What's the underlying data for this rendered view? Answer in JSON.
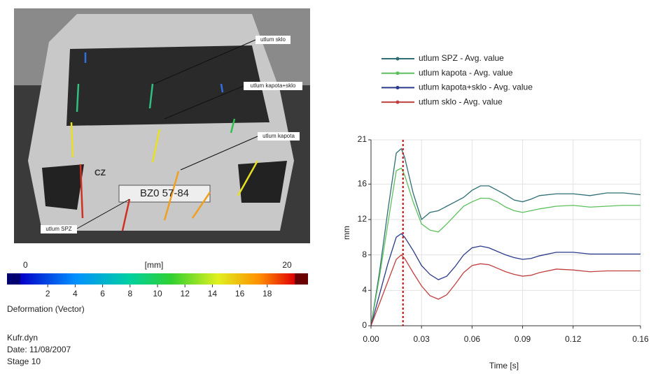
{
  "photo_labels": [
    "utlum sklo",
    "utlum kapota+sklo",
    "utlum kapota",
    "utlum SPZ"
  ],
  "photo_texts": [
    "CZ",
    "BZ0 57-84"
  ],
  "colorbar": {
    "min": 0,
    "max": 20,
    "unit": "[mm]",
    "ticks": [
      2,
      4,
      6,
      8,
      10,
      12,
      14,
      16,
      18
    ],
    "title": "Deformation (Vector)"
  },
  "info": [
    "Kufr.dyn",
    "Date: 11/08/2007",
    "Stage 10"
  ],
  "chart_data": {
    "type": "line",
    "x_label": "Time [s]",
    "y_label": "mm",
    "x": [
      0,
      0.005,
      0.01,
      0.015,
      0.018,
      0.02,
      0.025,
      0.03,
      0.035,
      0.04,
      0.045,
      0.05,
      0.055,
      0.06,
      0.065,
      0.07,
      0.075,
      0.08,
      0.085,
      0.09,
      0.095,
      0.1,
      0.11,
      0.12,
      0.13,
      0.14,
      0.15,
      0.16
    ],
    "series": [
      {
        "name": "utlum SPZ - Avg. value",
        "color": "#2f6f73",
        "values": [
          0,
          6,
          13,
          19.5,
          20,
          19,
          15,
          12,
          12.8,
          13,
          13.5,
          14,
          14.5,
          15.3,
          15.8,
          15.8,
          15.3,
          14.8,
          14.2,
          14,
          14.3,
          14.7,
          14.9,
          14.9,
          14.7,
          15,
          15,
          14.8
        ]
      },
      {
        "name": "utlum kapota - Avg. value",
        "color": "#5cc05c",
        "values": [
          0,
          5.5,
          11.5,
          17.5,
          17.8,
          17,
          14,
          11.5,
          10.8,
          10.6,
          11.5,
          12.5,
          13.5,
          14,
          14.4,
          14.4,
          14,
          13.4,
          13,
          12.8,
          13,
          13.2,
          13.5,
          13.6,
          13.4,
          13.5,
          13.6,
          13.6
        ]
      },
      {
        "name": "utlum kapota+sklo  - Avg. value",
        "color": "#2a3a8a",
        "values": [
          0,
          3.5,
          7,
          10,
          10.4,
          10,
          8.5,
          6.8,
          5.8,
          5.2,
          5.6,
          6.7,
          8,
          8.8,
          9,
          8.8,
          8.4,
          8,
          7.7,
          7.5,
          7.6,
          7.9,
          8.3,
          8.3,
          8.1,
          8.1,
          8.1,
          8.1
        ]
      },
      {
        "name": "utlum sklo - Avg. value",
        "color": "#c04040",
        "values": [
          0,
          2.5,
          5,
          7.5,
          8,
          7.6,
          6,
          4.5,
          3.4,
          3,
          3.5,
          4.7,
          6,
          6.8,
          7,
          6.9,
          6.5,
          6.1,
          5.8,
          5.6,
          5.7,
          6,
          6.4,
          6.3,
          6.1,
          6.2,
          6.2,
          6.2
        ]
      }
    ],
    "marker_x": 0.019,
    "marker_color": "#cc0000",
    "xlim": [
      0,
      0.16
    ],
    "ylim": [
      0,
      21
    ],
    "xticks": [
      {
        "value": 0,
        "label": "0.00"
      },
      0.03,
      0.06,
      0.09,
      0.12,
      0.16
    ],
    "yticks": [
      0,
      4,
      8,
      12,
      16,
      21
    ],
    "grid": true
  }
}
